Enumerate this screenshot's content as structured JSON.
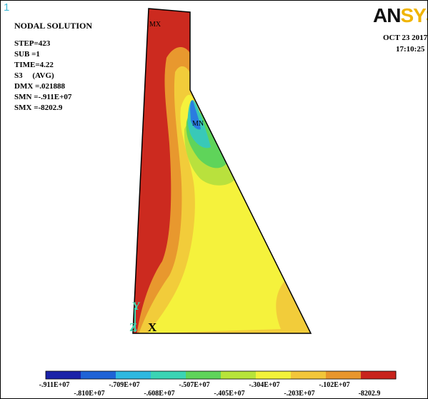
{
  "window_number": "1",
  "solution": {
    "title": "NODAL SOLUTION",
    "lines": [
      "STEP=423",
      "SUB =1",
      "TIME=4.22",
      "S3     (AVG)",
      "DMX =.021888",
      "SMN =-.911E+07",
      "SMX =-8202.9"
    ]
  },
  "logo": {
    "dark": "AN",
    "accent": "SYS"
  },
  "date": "OCT 23 2017",
  "time": "17:10:25",
  "markers": {
    "max": "MX",
    "min": "MN"
  },
  "triad": {
    "y": "Y",
    "z": "Z",
    "x": "X"
  },
  "legend": {
    "top_labels": [
      "-.911E+07",
      "-.709E+07",
      "-.507E+07",
      "-.304E+07",
      "-.102E+07"
    ],
    "bottom_labels": [
      "-.810E+07",
      "-.608E+07",
      "-.405E+07",
      "-.203E+07",
      "-8202.9"
    ],
    "colors": [
      "#1a22a8",
      "#1f63d6",
      "#2fb8e0",
      "#3bd4b4",
      "#5fd45a",
      "#b7e43a",
      "#f2f23a",
      "#f2c63a",
      "#e8962c",
      "#c8231c"
    ]
  },
  "colors": {
    "band_max": "#cc2a1f",
    "band_orange": "#e8982e",
    "band_yellow_orange": "#f2cc3a",
    "band_yellow": "#f5f23c",
    "band_green_yellow": "#b9e13d",
    "band_green": "#5fd45a",
    "band_cyan": "#38c9b8",
    "band_blue": "#2a7ce0",
    "triad_axis": "#3fd6b0"
  }
}
